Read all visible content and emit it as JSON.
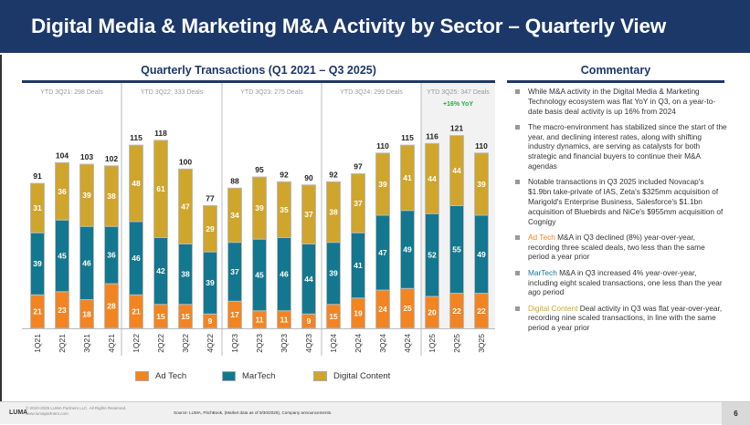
{
  "header": {
    "title": "Digital Media & Marketing M&A Activity by Sector – Quarterly View"
  },
  "chart_title": "Quarterly Transactions (Q1 2021 – Q3 2025)",
  "commentary_title": "Commentary",
  "chart_data": {
    "type": "bar",
    "stacked": true,
    "title": "Quarterly Transactions (Q1 2021 – Q3 2025)",
    "categories": [
      "1Q21",
      "2Q21",
      "3Q21",
      "4Q21",
      "1Q22",
      "2Q22",
      "3Q22",
      "4Q22",
      "1Q23",
      "2Q23",
      "3Q23",
      "4Q23",
      "1Q24",
      "2Q24",
      "3Q24",
      "4Q24",
      "1Q25",
      "2Q25",
      "3Q25"
    ],
    "series": [
      {
        "name": "Ad Tech",
        "color": "#f28522",
        "values": [
          21,
          23,
          18,
          28,
          21,
          15,
          15,
          9,
          17,
          11,
          11,
          9,
          15,
          19,
          24,
          25,
          20,
          22,
          22
        ]
      },
      {
        "name": "MarTech",
        "color": "#13788f",
        "values": [
          39,
          45,
          46,
          36,
          46,
          42,
          38,
          39,
          37,
          45,
          46,
          44,
          39,
          41,
          47,
          49,
          52,
          55,
          49
        ]
      },
      {
        "name": "Digital Content",
        "color": "#cfa52c",
        "values": [
          31,
          36,
          39,
          38,
          48,
          61,
          47,
          29,
          34,
          39,
          35,
          37,
          38,
          37,
          39,
          41,
          44,
          44,
          39
        ]
      }
    ],
    "totals": [
      91,
      104,
      103,
      102,
      115,
      118,
      100,
      77,
      88,
      95,
      92,
      90,
      92,
      97,
      110,
      115,
      116,
      121,
      110
    ],
    "ylim": [
      0,
      125
    ],
    "year_groups": [
      {
        "label": "YTD 3Q21: 298 Deals"
      },
      {
        "label": "YTD 3Q22: 333 Deals"
      },
      {
        "label": "YTD 3Q23: 275 Deals"
      },
      {
        "label": "YTD 3Q24: 299 Deals"
      },
      {
        "label": "YTD 3Q25: 347 Deals",
        "note": "+16% YoY",
        "highlighted": true
      }
    ],
    "legend": "bottom"
  },
  "commentary": [
    {
      "text": "While M&A activity in the Digital Media & Marketing Technology ecosystem was flat YoY in Q3, on a year-to-date basis deal activity is up 16% from 2024"
    },
    {
      "text": "The macro-environment has stabilized since the start of the year, and declining interest rates, along with shifting industry dynamics, are serving as catalysts for both strategic and financial buyers to continue their M&A agendas"
    },
    {
      "text": "Notable transactions in Q3 2025 included Novacap's $1.9bn take-private of IAS, Zeta's $325mm acquisition of Marigold's Enterprise Business, Salesforce's $1.1bn acquisition of Bluebirds and NiCe's $955mm acquisition of Cognigy"
    },
    {
      "lead": "Ad Tech",
      "text": " M&A in Q3 declined (8%) year-over-year, recording three scaled deals, two less than the same period a year prior"
    },
    {
      "lead": "MarTech",
      "text": " M&A in Q3 increased 4% year-over-year, including eight scaled transactions, one less than the year ago period"
    },
    {
      "lead": "Digital Content",
      "text": " Deal activity in Q3 was flat year-over-year, recording nine scaled transactions, in line with the same period a year prior"
    }
  ],
  "footer": {
    "logo": "LUMA",
    "copyright": "© 2010-2025 LUMA Partners LLC. All Rights Reserved.",
    "website": "www.lumapartners.com",
    "source": "Source: LUMA, PitchBook, (Market data as of 9/30/2025), Company announcements.",
    "page": "6"
  }
}
